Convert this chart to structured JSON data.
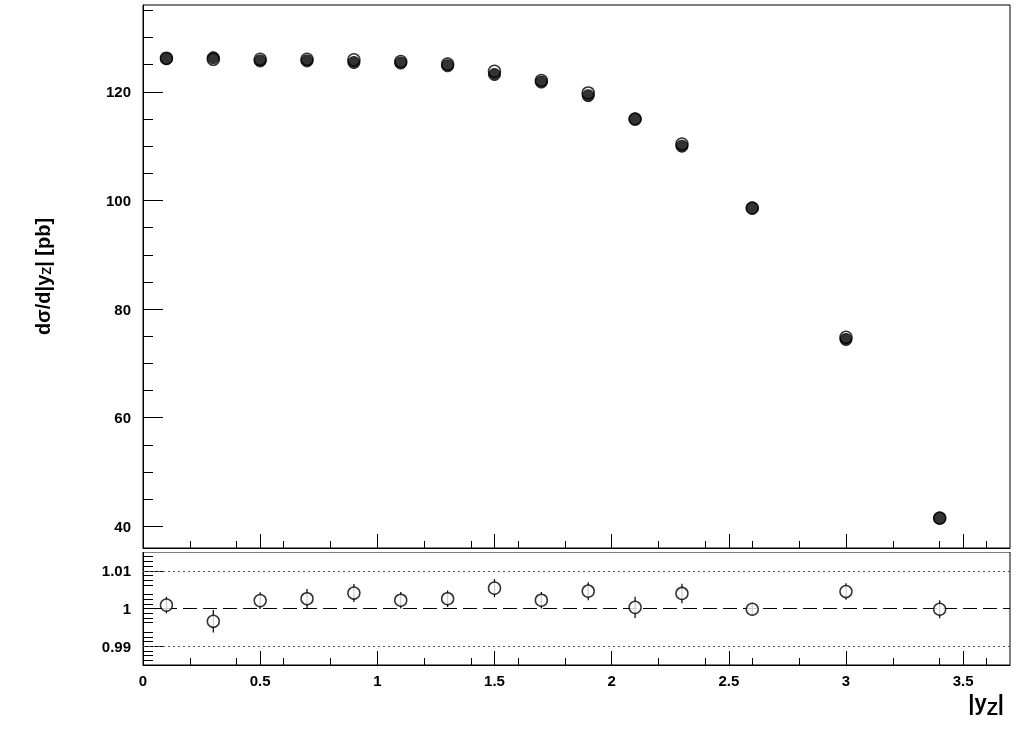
{
  "chart_data": [
    {
      "type": "scatter",
      "ylabel": "dσ/d|y$_{Z}$| [pb]",
      "xlim": [
        0,
        3.7
      ],
      "xticks": [
        0,
        0.5,
        1,
        1.5,
        2,
        2.5,
        3,
        3.5
      ],
      "ylim": [
        36,
        136
      ],
      "yticks": [
        40,
        60,
        80,
        100,
        120
      ],
      "tick_labels": "y",
      "grid": false,
      "marker": "circle",
      "series": [
        {
          "color": "#000000",
          "x": [
            0.1,
            0.3,
            0.5,
            0.7,
            0.9,
            1.1,
            1.3,
            1.5,
            1.7,
            1.9,
            2.1,
            2.3,
            2.6,
            3.0,
            3.4
          ],
          "values": [
            126.1,
            126.3,
            125.7,
            125.7,
            125.4,
            125.3,
            124.8,
            123.2,
            121.8,
            119.3,
            115.0,
            110.0,
            98.6,
            74.4,
            41.5
          ]
        },
        {
          "color": "#000000",
          "x": [
            0.1,
            0.3,
            0.5,
            0.7,
            0.9,
            1.1,
            1.3,
            1.5,
            1.7,
            1.9,
            2.1,
            2.3,
            2.6,
            3.0,
            3.4
          ],
          "values": [
            126.2,
            126.0,
            126.0,
            126.0,
            125.9,
            125.6,
            125.1,
            123.8,
            122.1,
            119.8,
            115.0,
            110.4,
            98.6,
            74.8,
            41.5
          ]
        }
      ]
    },
    {
      "type": "scatter",
      "xlabel": "|y$_{Z}$|",
      "xlim": [
        0,
        3.7
      ],
      "xticks": [
        0,
        0.5,
        1,
        1.5,
        2,
        2.5,
        3,
        3.5
      ],
      "ylim": [
        0.985,
        1.015
      ],
      "yticks": [
        0.99,
        1,
        1.01
      ],
      "grid": false,
      "marker": "circle",
      "ref_lines": [
        {
          "axis": "y",
          "value": 1,
          "label": null,
          "line_style": "dashed",
          "color": "#000000"
        },
        {
          "axis": "y",
          "value": 1.01,
          "label": null,
          "line_style": "dotted",
          "color": "#555555"
        },
        {
          "axis": "y",
          "value": 0.99,
          "label": null,
          "line_style": "dotted",
          "color": "#555555"
        }
      ],
      "series": [
        {
          "color": "#000000",
          "x": [
            0.1,
            0.3,
            0.5,
            0.7,
            0.9,
            1.1,
            1.3,
            1.5,
            1.7,
            1.9,
            2.1,
            2.3,
            2.6,
            3.0,
            3.4
          ],
          "values": [
            1.0009,
            0.9966,
            1.0021,
            1.0026,
            1.0041,
            1.0022,
            1.0026,
            1.0054,
            1.0022,
            1.0046,
            1.0003,
            1.004,
            0.9998,
            1.0045,
            0.9998
          ],
          "errors": [
            0.0022,
            0.003,
            0.0022,
            0.0026,
            0.0024,
            0.0022,
            0.0022,
            0.0024,
            0.0022,
            0.0024,
            0.0028,
            0.0026,
            0.0016,
            0.0022,
            0.0024
          ]
        }
      ]
    }
  ]
}
